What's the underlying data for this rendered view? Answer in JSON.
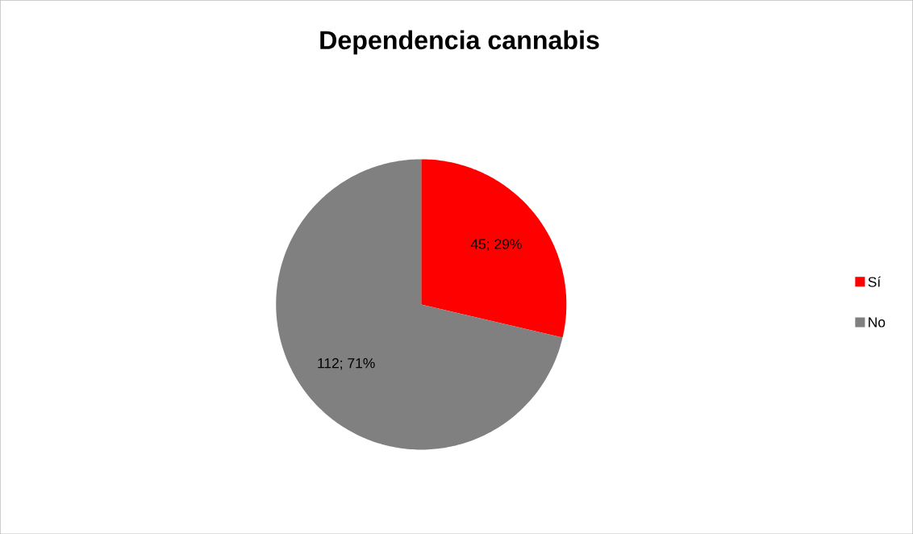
{
  "chart_data": {
    "type": "pie",
    "title": "Dependencia cannabis",
    "categories": [
      "Sí",
      "No"
    ],
    "values": [
      45,
      112
    ],
    "colors": [
      "#ff0000",
      "#808080"
    ],
    "value_labels": [
      "45; 29%",
      "112; 71%"
    ],
    "legend": "right"
  }
}
